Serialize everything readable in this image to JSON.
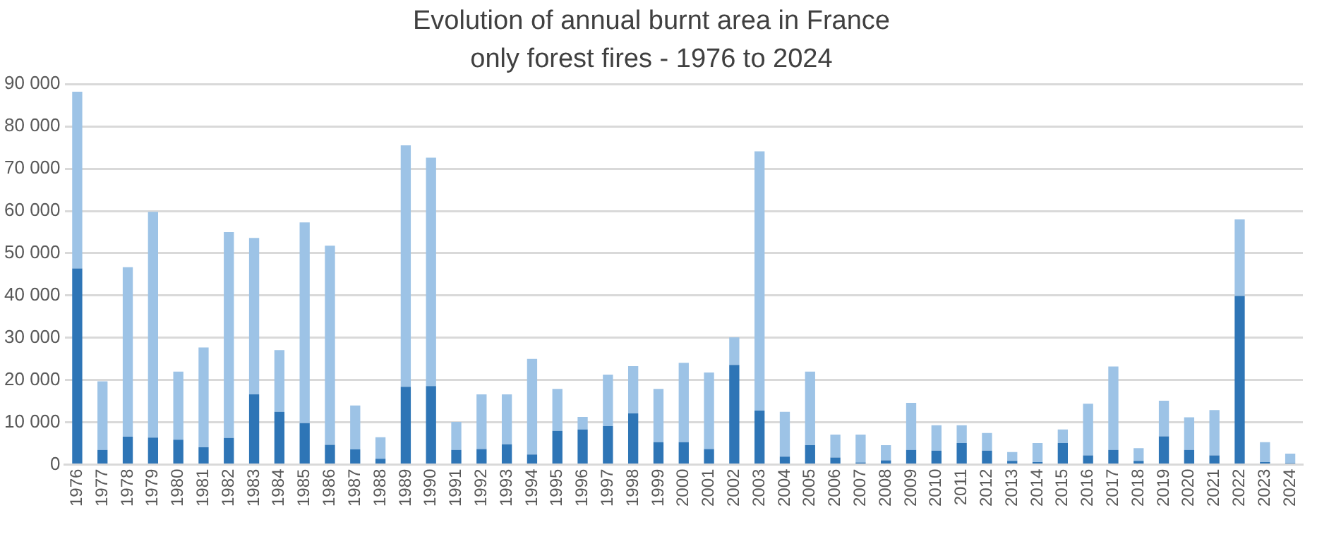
{
  "chart_data": {
    "type": "bar",
    "title": "Evolution of annual burnt area in France",
    "subtitle": "only forest fires - 1976 to 2024",
    "categories": [
      "1976",
      "1977",
      "1978",
      "1979",
      "1980",
      "1981",
      "1982",
      "1983",
      "1984",
      "1985",
      "1986",
      "1987",
      "1988",
      "1989",
      "1990",
      "1991",
      "1992",
      "1993",
      "1994",
      "1995",
      "1996",
      "1997",
      "1998",
      "1999",
      "2000",
      "2001",
      "2002",
      "2003",
      "2004",
      "2005",
      "2006",
      "2007",
      "2008",
      "2009",
      "2010",
      "2011",
      "2012",
      "2013",
      "2014",
      "2015",
      "2016",
      "2017",
      "2018",
      "2019",
      "2020",
      "2021",
      "2022",
      "2023",
      "2024"
    ],
    "stacked": true,
    "series": [
      {
        "color": "#2e75b6",
        "values": [
          46400,
          3500,
          6600,
          6400,
          5900,
          4100,
          6300,
          16600,
          12500,
          9800,
          4700,
          3600,
          1400,
          18400,
          18600,
          3500,
          3700,
          4800,
          2400,
          8000,
          8300,
          9100,
          12100,
          5300,
          5300,
          3700,
          23600,
          12800,
          1900,
          4600,
          1700,
          500,
          1000,
          3500,
          3300,
          5100,
          3300,
          900,
          600,
          5100,
          2200,
          3500,
          900,
          6700,
          3500,
          2200,
          39900,
          600,
          400
        ]
      },
      {
        "color": "#9dc3e6",
        "values": [
          41800,
          16200,
          40100,
          53400,
          16100,
          23600,
          48700,
          37000,
          14600,
          47500,
          47100,
          10400,
          5100,
          57100,
          54000,
          6600,
          12900,
          11800,
          22600,
          9900,
          3000,
          12200,
          11200,
          12600,
          18800,
          18100,
          6500,
          61300,
          10600,
          17400,
          5400,
          6600,
          3600,
          11100,
          6000,
          4200,
          4200,
          2100,
          4500,
          3200,
          12200,
          19700,
          3000,
          8400,
          7700,
          10700,
          18100,
          4700,
          2200
        ]
      }
    ],
    "ylim": [
      0,
      90000
    ],
    "yticks": [
      0,
      {
        "value": 10000,
        "label": "10 000"
      },
      {
        "value": 20000,
        "label": "20 000"
      },
      {
        "value": 30000,
        "label": "30 000"
      },
      {
        "value": 40000,
        "label": "40 000"
      },
      {
        "value": 50000,
        "label": "50 000"
      },
      {
        "value": 60000,
        "label": "60 000"
      },
      {
        "value": 70000,
        "label": "70 000"
      },
      {
        "value": 80000,
        "label": "80 000"
      },
      {
        "value": 90000,
        "label": "90 000"
      }
    ],
    "grid": "y"
  }
}
